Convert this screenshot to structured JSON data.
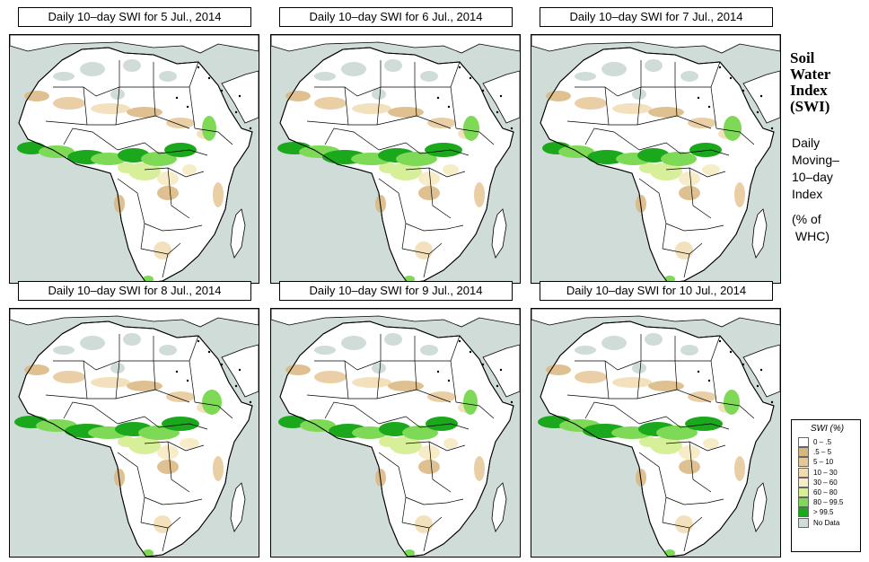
{
  "panels": [
    {
      "title": "Daily 10–day SWI for  5 Jul., 2014"
    },
    {
      "title": "Daily 10–day SWI for  6 Jul., 2014"
    },
    {
      "title": "Daily 10–day SWI for  7 Jul., 2014"
    },
    {
      "title": "Daily 10–day SWI for  8 Jul., 2014"
    },
    {
      "title": "Daily 10–day SWI for  9 Jul., 2014"
    },
    {
      "title": "Daily 10–day SWI for 10 Jul., 2014"
    }
  ],
  "side": {
    "title_lines": [
      "Soil",
      "Water",
      "Index",
      "(SWI)"
    ],
    "desc_lines": [
      "Daily",
      "Moving–",
      "10–day",
      "Index"
    ],
    "unit_lines": [
      "(% of",
      " WHC)"
    ]
  },
  "legend": {
    "title": "SWI (%)",
    "items": [
      {
        "label": "0 – .5",
        "color": "#ffffff"
      },
      {
        "label": ".5 – 5",
        "color": "#d9b67e"
      },
      {
        "label": "5 – 10",
        "color": "#e6c797"
      },
      {
        "label": "10 – 30",
        "color": "#f0dcb0"
      },
      {
        "label": "30 – 60",
        "color": "#f7ecc8"
      },
      {
        "label": "60 – 80",
        "color": "#d8ef99"
      },
      {
        "label": "80 – 99.5",
        "color": "#7ed957"
      },
      {
        "label": "> 99.5",
        "color": "#1ca81c"
      },
      {
        "label": "No Data",
        "color": "#cfdcd7"
      }
    ]
  }
}
